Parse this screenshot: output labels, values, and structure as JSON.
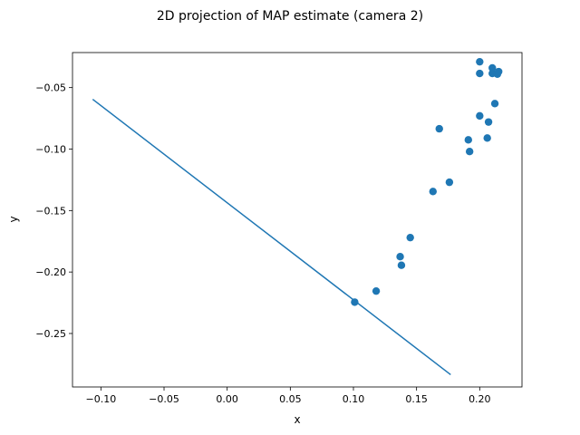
{
  "chart_data": {
    "type": "scatter",
    "title": "2D projection of MAP estimate (camera 2)",
    "xlabel": "x",
    "ylabel": "y",
    "xlim": [
      -0.1225,
      0.2335
    ],
    "ylim": [
      -0.2935,
      -0.0215
    ],
    "x_ticks": [
      -0.1,
      -0.05,
      0.0,
      0.05,
      0.1,
      0.15,
      0.2
    ],
    "x_tick_labels": [
      "−0.10",
      "−0.05",
      "0.00",
      "0.05",
      "0.10",
      "0.15",
      "0.20"
    ],
    "y_ticks": [
      -0.25,
      -0.2,
      -0.15,
      -0.1,
      -0.05
    ],
    "y_tick_labels": [
      "−0.25",
      "−0.20",
      "−0.15",
      "−0.10",
      "−0.05"
    ],
    "grid": false,
    "color": "#1f77b4",
    "line": {
      "x": [
        -0.1065,
        0.177
      ],
      "y": [
        -0.0595,
        -0.2835
      ]
    },
    "points": {
      "x": [
        0.101,
        0.118,
        0.137,
        0.138,
        0.145,
        0.163,
        0.176,
        0.168,
        0.191,
        0.192,
        0.2,
        0.206,
        0.207,
        0.212,
        0.2,
        0.2,
        0.21,
        0.21,
        0.214,
        0.215
      ],
      "y": [
        -0.2245,
        -0.2155,
        -0.1875,
        -0.1945,
        -0.172,
        -0.1345,
        -0.127,
        -0.0835,
        -0.0925,
        -0.102,
        -0.073,
        -0.091,
        -0.078,
        -0.063,
        -0.029,
        -0.0385,
        -0.0385,
        -0.034,
        -0.039,
        -0.037
      ]
    }
  }
}
